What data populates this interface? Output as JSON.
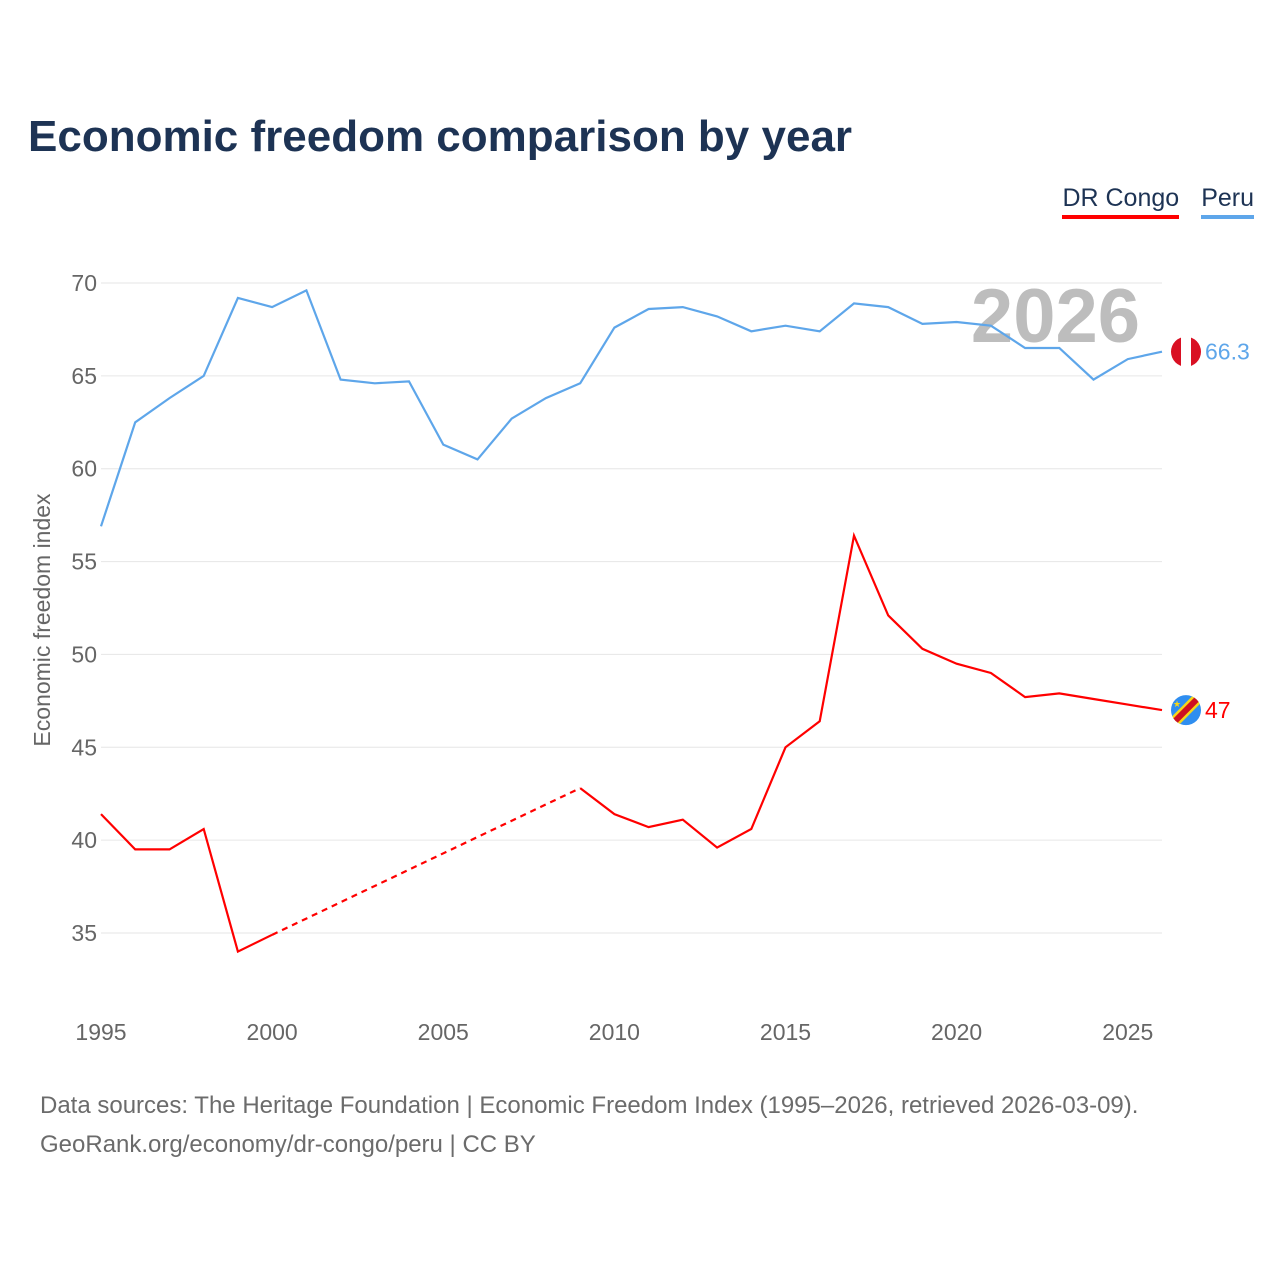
{
  "title": "Economic freedom comparison by year",
  "source_line1": "Data sources: The Heritage Foundation | Economic Freedom Index (1995–2026, retrieved 2026-03-09).",
  "source_line2": "GeoRank.org/economy/dr-congo/peru | CC BY",
  "chart_data": {
    "type": "line",
    "title": "Economic freedom comparison by year",
    "xlabel": "",
    "ylabel": "Economic freedom index",
    "year_label": "2026",
    "xlim": [
      1995,
      2026
    ],
    "ylim": [
      31,
      71
    ],
    "xticks": [
      1995,
      2000,
      2005,
      2010,
      2015,
      2020,
      2025
    ],
    "yticks": [
      35,
      40,
      45,
      50,
      55,
      60,
      65,
      70
    ],
    "grid": true,
    "legend_position": "top-right",
    "x": [
      1995,
      1996,
      1997,
      1998,
      1999,
      2000,
      2001,
      2002,
      2003,
      2004,
      2005,
      2006,
      2007,
      2008,
      2009,
      2010,
      2011,
      2012,
      2013,
      2014,
      2015,
      2016,
      2017,
      2018,
      2019,
      2020,
      2021,
      2022,
      2023,
      2024,
      2025,
      2026
    ],
    "series": [
      {
        "name": "DR Congo",
        "color": "#ff0000",
        "end_label": "47",
        "values": [
          41.4,
          39.5,
          39.5,
          40.6,
          34.0,
          34.9,
          null,
          null,
          null,
          null,
          null,
          null,
          null,
          null,
          42.8,
          41.4,
          40.7,
          41.1,
          39.6,
          40.6,
          45.0,
          46.4,
          56.4,
          52.1,
          50.3,
          49.5,
          49.0,
          47.7,
          47.9,
          47.6,
          47.3,
          47.0
        ]
      },
      {
        "name": "Peru",
        "color": "#5ea6ea",
        "end_label": "66.3",
        "values": [
          56.9,
          62.5,
          63.8,
          65.0,
          69.2,
          68.7,
          69.6,
          64.8,
          64.6,
          64.7,
          61.3,
          60.5,
          62.7,
          63.8,
          64.6,
          67.6,
          68.6,
          68.7,
          68.2,
          67.4,
          67.7,
          67.4,
          68.9,
          68.7,
          67.8,
          67.9,
          67.7,
          66.5,
          66.5,
          64.8,
          65.9,
          66.3
        ]
      }
    ]
  }
}
